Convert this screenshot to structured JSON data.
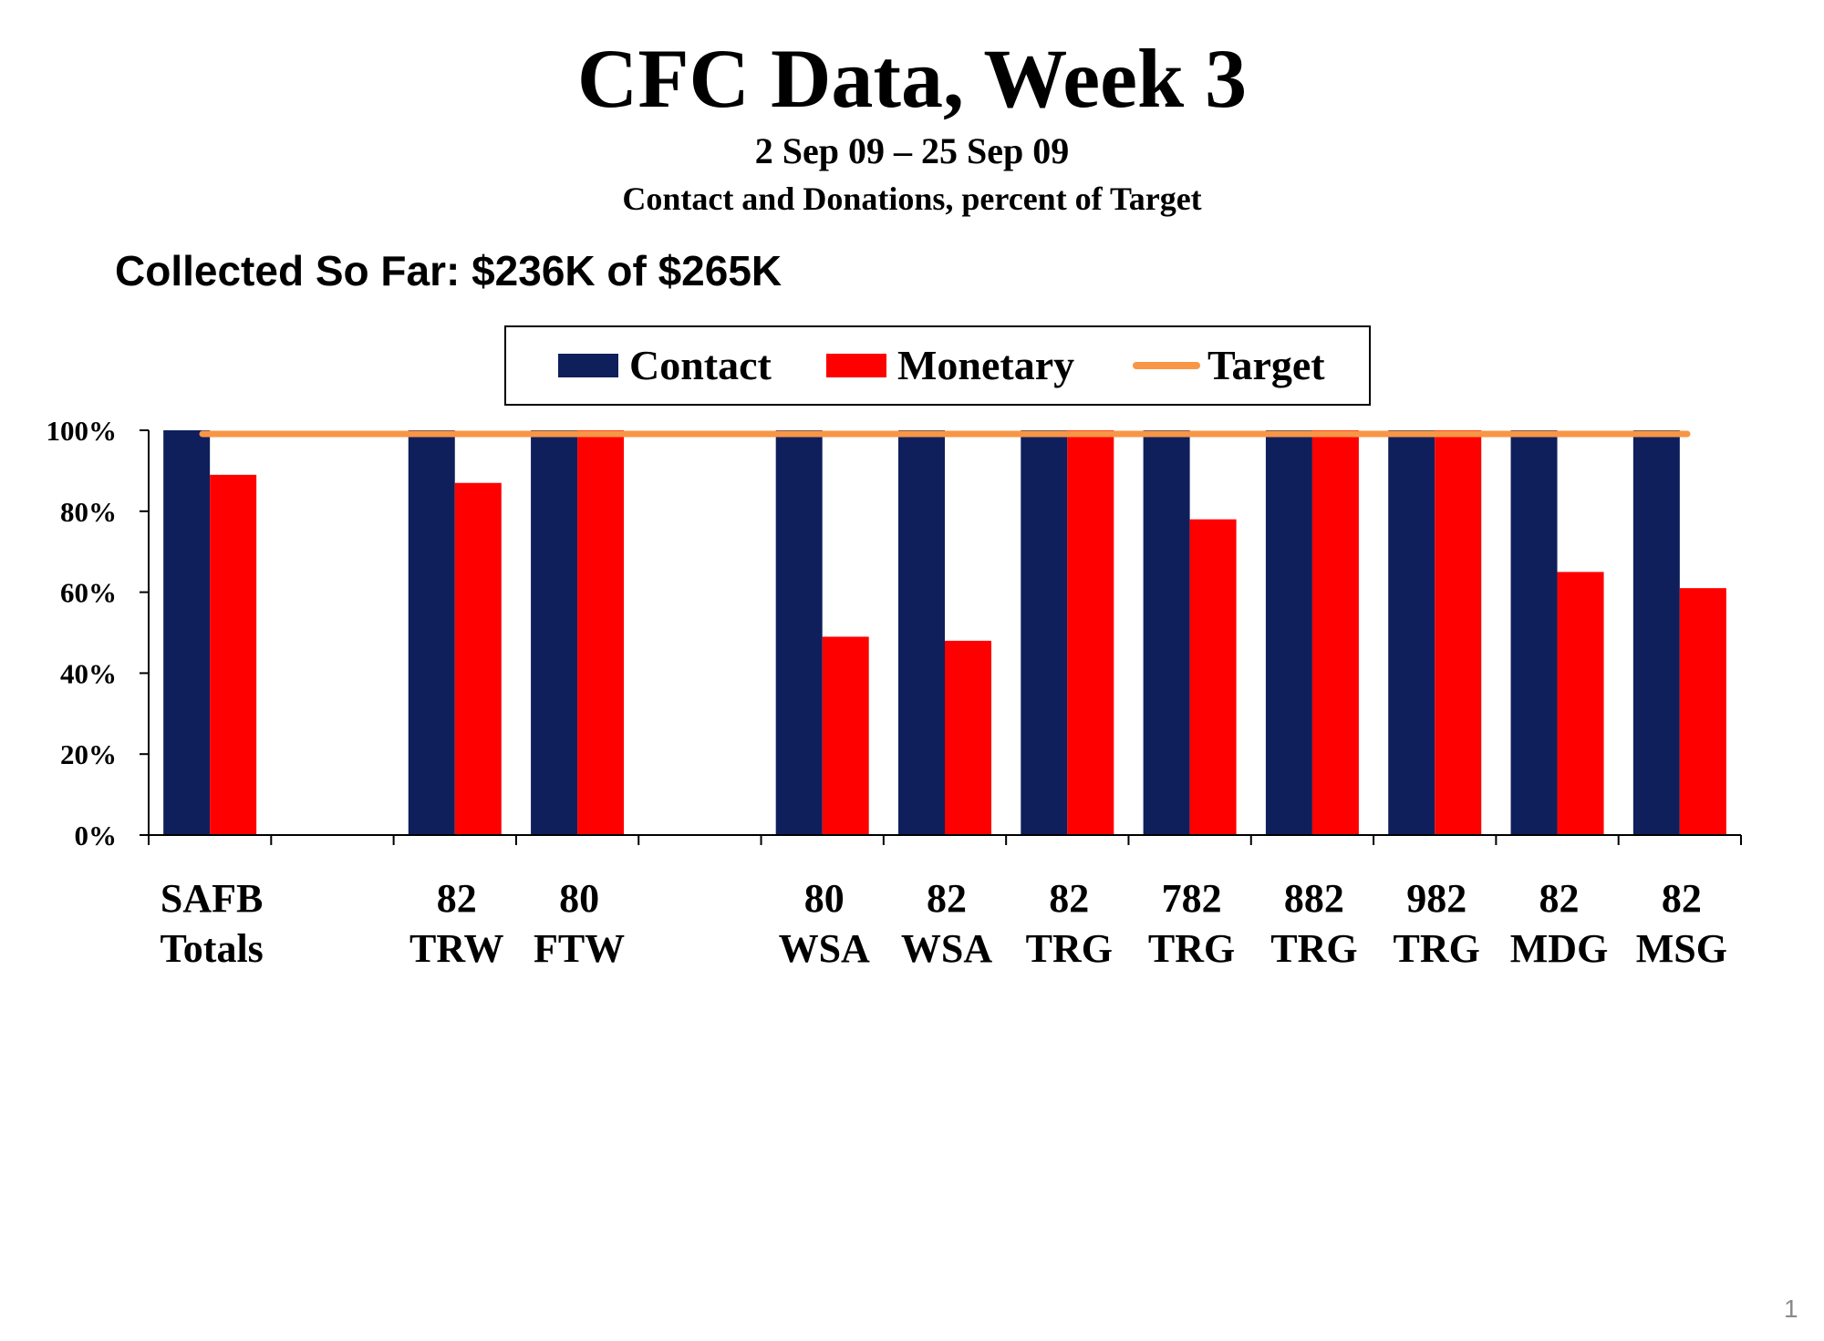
{
  "slide": {
    "title": "CFC Data, Week 3",
    "date_range": "2 Sep 09 – 25 Sep 09",
    "caption": "Contact and Donations, percent of Target",
    "collected": "Collected So Far: $236K of $265K",
    "page_number": "1"
  },
  "chart_data": {
    "type": "bar",
    "categories": [
      [
        "SAFB",
        "Totals"
      ],
      [
        "",
        ""
      ],
      [
        "82",
        "TRW"
      ],
      [
        "80",
        "FTW"
      ],
      [
        "",
        ""
      ],
      [
        "80",
        "WSA"
      ],
      [
        "82",
        "WSA"
      ],
      [
        "82",
        "TRG"
      ],
      [
        "782",
        "TRG"
      ],
      [
        "882",
        "TRG"
      ],
      [
        "982",
        "TRG"
      ],
      [
        "82",
        "MDG"
      ],
      [
        "82",
        "MSG"
      ]
    ],
    "series": [
      {
        "name": "Contact",
        "color": "#0f1f5c",
        "values": [
          100,
          null,
          100,
          100,
          null,
          100,
          100,
          100,
          100,
          100,
          100,
          100,
          100
        ]
      },
      {
        "name": "Monetary",
        "color": "#ff0000",
        "values": [
          89,
          null,
          87,
          100,
          null,
          49,
          48,
          100,
          78,
          100,
          100,
          65,
          61
        ]
      }
    ],
    "target": {
      "name": "Target",
      "value": 100,
      "color": "#f79646"
    },
    "ylim": [
      0,
      100
    ],
    "yticks": [
      "0%",
      "20%",
      "40%",
      "60%",
      "80%",
      "100%"
    ],
    "legend_position": "top"
  }
}
